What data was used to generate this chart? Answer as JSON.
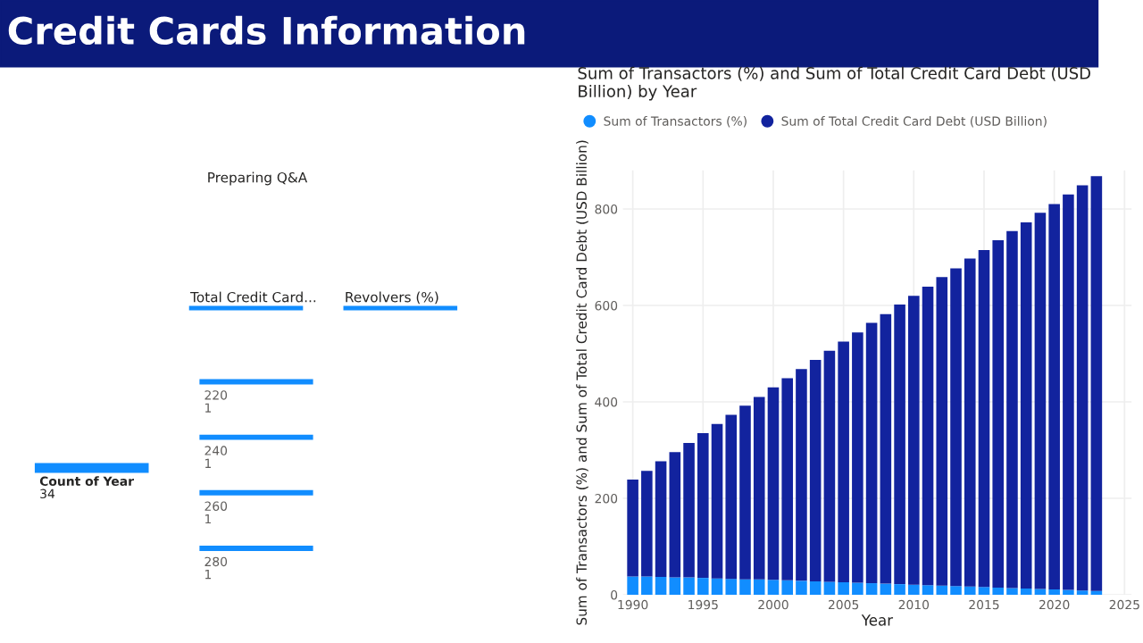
{
  "chart_data": [
    {
      "type": "other",
      "title": "Credit Cards Information",
      "annotations": [
        "Preparing Q&A",
        "Total Credit Card...",
        "Revolvers (%)",
        "Count of Year",
        "34"
      ]
    },
    {
      "type": "bar",
      "orientation": "horizontal",
      "categories": [
        "220",
        "240",
        "260",
        "280"
      ],
      "values": [
        1,
        1,
        1,
        1
      ],
      "color": "#118dff",
      "data_labels": true
    },
    {
      "type": "bar",
      "stacked": true,
      "title": "Sum of Transactors (%) and Sum of Total Credit Card Debt (USD Billion) by Year",
      "xlabel": "Year",
      "ylabel": "Sum of Transactors (%) and Sum of Total Credit Card Debt (USD Billion)",
      "x": [
        1990,
        1991,
        1992,
        1993,
        1994,
        1995,
        1996,
        1997,
        1998,
        1999,
        2000,
        2001,
        2002,
        2003,
        2004,
        2005,
        2006,
        2007,
        2008,
        2009,
        2010,
        2011,
        2012,
        2013,
        2014,
        2015,
        2016,
        2017,
        2018,
        2019,
        2020,
        2021,
        2022,
        2023
      ],
      "series": [
        {
          "name": "Sum of Transactors (%)",
          "color": "#118dff",
          "values": [
            38,
            38,
            37,
            36,
            36,
            35,
            34,
            33,
            32,
            32,
            31,
            30,
            29,
            28,
            27,
            26,
            25,
            24,
            23,
            22,
            21,
            20,
            19,
            18,
            17,
            16,
            15,
            14,
            13,
            12,
            11,
            10,
            9,
            8
          ]
        },
        {
          "name": "Sum of Total Credit Card Debt (USD Billion)",
          "color": "#12239e",
          "values": [
            201,
            219,
            240,
            260,
            279,
            300,
            320,
            340,
            360,
            378,
            399,
            419,
            439,
            459,
            479,
            499,
            519,
            540,
            559,
            580,
            599,
            619,
            640,
            659,
            680,
            699,
            720,
            740,
            759,
            780,
            799,
            820,
            840,
            860
          ]
        }
      ],
      "xlim": [
        1989.3,
        2025.5
      ],
      "xticks": [
        1990,
        1995,
        2000,
        2005,
        2010,
        2015,
        2020,
        2025
      ],
      "ylim": [
        0,
        880
      ],
      "yticks": [
        0,
        200,
        400,
        600,
        800
      ],
      "grid": true,
      "legend": "top left"
    }
  ]
}
